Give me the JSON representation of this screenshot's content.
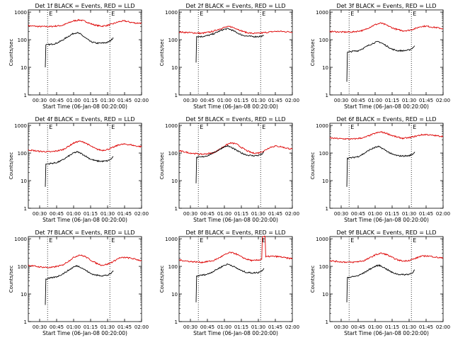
{
  "colors": {
    "events": "#000000",
    "lld": "#dd0000",
    "axis": "#000000",
    "marker": "#000000"
  },
  "chart_data": [
    {
      "type": "line",
      "title": "Det 1f BLACK = Events, RED = LLD",
      "xlabel": "Start Time (06-Jan-08 00:20:00)",
      "ylabel": "Counts/sec",
      "x_ticks": [
        "00:30",
        "00:45",
        "01:00",
        "01:15",
        "01:30",
        "01:45",
        "02:00"
      ],
      "y_ticks": [
        "1",
        "10",
        "100",
        "1000"
      ],
      "xlim_minutes": [
        20,
        120
      ],
      "ylim": [
        1,
        1200
      ],
      "y_scale": "log",
      "marker_lines_minutes": [
        37,
        92
      ],
      "marker_labels": [
        "E",
        "E"
      ],
      "series": [
        {
          "name": "LLD",
          "color": "lld",
          "x": [
            20,
            30,
            40,
            50,
            55,
            60,
            65,
            70,
            75,
            80,
            85,
            90,
            95,
            100,
            105,
            110,
            115,
            120
          ],
          "y": [
            320,
            300,
            300,
            330,
            400,
            480,
            520,
            470,
            380,
            330,
            310,
            330,
            380,
            450,
            480,
            430,
            400,
            400
          ]
        },
        {
          "name": "Events",
          "color": "events",
          "x": [
            35,
            35.5,
            36,
            40,
            45,
            50,
            55,
            60,
            63,
            66,
            70,
            75,
            80,
            85,
            90,
            93,
            95
          ],
          "y": [
            10,
            65,
            65,
            68,
            75,
            95,
            130,
            170,
            180,
            160,
            120,
            85,
            75,
            75,
            80,
            95,
            120
          ]
        }
      ]
    },
    {
      "type": "line",
      "title": "Det 2f BLACK = Events, RED = LLD",
      "xlabel": "Start Time (06-Jan-08 00:20:00)",
      "ylabel": "Counts/sec",
      "x_ticks": [
        "00:30",
        "00:45",
        "01:00",
        "01:15",
        "01:30",
        "01:45",
        "02:00"
      ],
      "y_ticks": [
        "1",
        "10",
        "100",
        "1000"
      ],
      "xlim_minutes": [
        20,
        120
      ],
      "ylim": [
        1,
        1200
      ],
      "y_scale": "log",
      "marker_lines_minutes": [
        37,
        92
      ],
      "marker_labels": [
        "E",
        "E"
      ],
      "series": [
        {
          "name": "LLD",
          "color": "lld",
          "x": [
            20,
            30,
            40,
            50,
            55,
            60,
            65,
            70,
            75,
            80,
            85,
            90,
            95,
            100,
            105,
            110,
            115,
            120
          ],
          "y": [
            190,
            180,
            170,
            200,
            240,
            280,
            300,
            260,
            210,
            180,
            170,
            170,
            180,
            190,
            200,
            200,
            195,
            190
          ]
        },
        {
          "name": "Events",
          "color": "events",
          "x": [
            35,
            35.5,
            36,
            40,
            45,
            50,
            55,
            60,
            63,
            66,
            70,
            75,
            80,
            85,
            90,
            93,
            95
          ],
          "y": [
            15,
            130,
            130,
            130,
            140,
            160,
            200,
            240,
            250,
            230,
            190,
            150,
            135,
            130,
            130,
            135,
            140
          ]
        }
      ]
    },
    {
      "type": "line",
      "title": "Det 3f BLACK = Events, RED = LLD",
      "xlabel": "Start Time (06-Jan-08 00:20:00)",
      "ylabel": "Counts/sec",
      "x_ticks": [
        "00:30",
        "00:45",
        "01:00",
        "01:15",
        "01:30",
        "01:45",
        "02:00"
      ],
      "y_ticks": [
        "1",
        "10",
        "100",
        "1000"
      ],
      "xlim_minutes": [
        20,
        120
      ],
      "ylim": [
        1,
        1200
      ],
      "y_scale": "log",
      "marker_lines_minutes": [
        37,
        92
      ],
      "marker_labels": [
        "E",
        "E"
      ],
      "series": [
        {
          "name": "LLD",
          "color": "lld",
          "x": [
            20,
            30,
            40,
            50,
            55,
            60,
            65,
            70,
            75,
            80,
            85,
            90,
            95,
            100,
            105,
            110,
            115,
            120
          ],
          "y": [
            200,
            190,
            190,
            220,
            280,
            350,
            400,
            340,
            270,
            230,
            210,
            220,
            250,
            300,
            310,
            290,
            270,
            250
          ]
        },
        {
          "name": "Events",
          "color": "events",
          "x": [
            35,
            35.5,
            36,
            40,
            45,
            50,
            55,
            60,
            63,
            66,
            70,
            75,
            80,
            85,
            90,
            93,
            95
          ],
          "y": [
            3,
            35,
            35,
            38,
            40,
            50,
            65,
            80,
            85,
            75,
            60,
            45,
            40,
            40,
            42,
            50,
            60
          ]
        }
      ]
    },
    {
      "type": "line",
      "title": "Det 4f BLACK = Events, RED = LLD",
      "xlabel": "Start Time (06-Jan-08 00:20:00)",
      "ylabel": "Counts/sec",
      "x_ticks": [
        "00:30",
        "00:45",
        "01:00",
        "01:15",
        "01:30",
        "01:45",
        "02:00"
      ],
      "y_ticks": [
        "1",
        "10",
        "100",
        "1000"
      ],
      "xlim_minutes": [
        20,
        120
      ],
      "ylim": [
        1,
        1200
      ],
      "y_scale": "log",
      "marker_lines_minutes": [
        37,
        92
      ],
      "marker_labels": [
        "E",
        "E"
      ],
      "series": [
        {
          "name": "LLD",
          "color": "lld",
          "x": [
            20,
            30,
            40,
            50,
            55,
            60,
            65,
            70,
            75,
            80,
            85,
            90,
            95,
            100,
            105,
            110,
            115,
            120
          ],
          "y": [
            130,
            115,
            110,
            130,
            170,
            230,
            270,
            240,
            180,
            140,
            125,
            135,
            160,
            200,
            210,
            200,
            180,
            170
          ]
        },
        {
          "name": "Events",
          "color": "events",
          "x": [
            35,
            35.5,
            36,
            40,
            45,
            50,
            55,
            60,
            63,
            66,
            70,
            75,
            80,
            85,
            90,
            93,
            95
          ],
          "y": [
            6,
            40,
            40,
            42,
            45,
            55,
            75,
            100,
            110,
            100,
            80,
            60,
            52,
            50,
            52,
            60,
            75
          ]
        }
      ]
    },
    {
      "type": "line",
      "title": "Det 5f BLACK = Events, RED = LLD",
      "xlabel": "Start Time (06-Jan-08 00:20:00)",
      "ylabel": "Counts/sec",
      "x_ticks": [
        "00:30",
        "00:45",
        "01:00",
        "01:15",
        "01:30",
        "01:45",
        "02:00"
      ],
      "y_ticks": [
        "1",
        "10",
        "100",
        "1000"
      ],
      "xlim_minutes": [
        20,
        120
      ],
      "ylim": [
        1,
        1200
      ],
      "y_scale": "log",
      "marker_lines_minutes": [
        37,
        92
      ],
      "marker_labels": [
        "E",
        "E"
      ],
      "series": [
        {
          "name": "LLD",
          "color": "lld",
          "x": [
            20,
            30,
            40,
            50,
            55,
            60,
            65,
            70,
            75,
            80,
            85,
            90,
            95,
            100,
            105,
            110,
            115,
            120
          ],
          "y": [
            120,
            100,
            90,
            100,
            130,
            180,
            230,
            220,
            160,
            120,
            100,
            100,
            120,
            160,
            180,
            170,
            150,
            140
          ]
        },
        {
          "name": "Events",
          "color": "events",
          "x": [
            35,
            35.5,
            36,
            40,
            45,
            50,
            55,
            60,
            63,
            66,
            70,
            75,
            80,
            85,
            90,
            93,
            95
          ],
          "y": [
            8,
            70,
            70,
            72,
            80,
            100,
            130,
            170,
            180,
            160,
            130,
            100,
            85,
            80,
            82,
            90,
            110
          ]
        }
      ]
    },
    {
      "type": "line",
      "title": "Det 6f BLACK = Events, RED = LLD",
      "xlabel": "Start Time (06-Jan-08 00:20:00)",
      "ylabel": "Counts/sec",
      "x_ticks": [
        "00:30",
        "00:45",
        "01:00",
        "01:15",
        "01:30",
        "01:45",
        "02:00"
      ],
      "y_ticks": [
        "1",
        "10",
        "100",
        "1000"
      ],
      "xlim_minutes": [
        20,
        120
      ],
      "ylim": [
        1,
        1200
      ],
      "y_scale": "log",
      "marker_lines_minutes": [
        37,
        92
      ],
      "marker_labels": [
        "E",
        "E"
      ],
      "series": [
        {
          "name": "LLD",
          "color": "lld",
          "x": [
            20,
            30,
            40,
            50,
            55,
            60,
            65,
            70,
            75,
            80,
            85,
            90,
            95,
            100,
            105,
            110,
            115,
            120
          ],
          "y": [
            350,
            330,
            320,
            360,
            430,
            520,
            580,
            520,
            430,
            370,
            340,
            360,
            400,
            450,
            470,
            440,
            420,
            400
          ]
        },
        {
          "name": "Events",
          "color": "events",
          "x": [
            35,
            35.5,
            36,
            40,
            45,
            50,
            55,
            60,
            63,
            66,
            70,
            75,
            80,
            85,
            90,
            93,
            95
          ],
          "y": [
            6,
            65,
            65,
            68,
            75,
            95,
            130,
            160,
            170,
            150,
            120,
            90,
            80,
            78,
            80,
            90,
            110
          ]
        }
      ]
    },
    {
      "type": "line",
      "title": "Det 7f BLACK = Events, RED = LLD",
      "xlabel": "Start Time (06-Jan-08 00:20:00)",
      "ylabel": "Counts/sec",
      "x_ticks": [
        "00:30",
        "00:45",
        "01:00",
        "01:15",
        "01:30",
        "01:45",
        "02:00"
      ],
      "y_ticks": [
        "1",
        "10",
        "100",
        "1000"
      ],
      "xlim_minutes": [
        20,
        120
      ],
      "ylim": [
        1,
        1200
      ],
      "y_scale": "log",
      "marker_lines_minutes": [
        37,
        92
      ],
      "marker_labels": [
        "E",
        "E"
      ],
      "series": [
        {
          "name": "LLD",
          "color": "lld",
          "x": [
            20,
            30,
            40,
            50,
            55,
            60,
            65,
            70,
            75,
            80,
            85,
            90,
            95,
            100,
            105,
            110,
            115,
            120
          ],
          "y": [
            110,
            95,
            90,
            110,
            150,
            210,
            260,
            230,
            170,
            130,
            110,
            120,
            150,
            200,
            210,
            200,
            180,
            160
          ]
        },
        {
          "name": "Events",
          "color": "events",
          "x": [
            35,
            35.5,
            36,
            40,
            45,
            50,
            55,
            60,
            63,
            66,
            70,
            75,
            80,
            85,
            90,
            93,
            95
          ],
          "y": [
            4,
            35,
            35,
            38,
            42,
            52,
            70,
            95,
            105,
            95,
            75,
            55,
            48,
            46,
            48,
            55,
            70
          ]
        }
      ]
    },
    {
      "type": "line",
      "title": "Det 8f BLACK = Events, RED = LLD",
      "xlabel": "Start Time (06-Jan-08 00:20:00)",
      "ylabel": "Counts/sec",
      "x_ticks": [
        "00:30",
        "00:45",
        "01:00",
        "01:15",
        "01:30",
        "01:45",
        "02:00"
      ],
      "y_ticks": [
        "1",
        "10",
        "100",
        "1000"
      ],
      "xlim_minutes": [
        20,
        120
      ],
      "ylim": [
        1,
        1200
      ],
      "y_scale": "log",
      "marker_lines_minutes": [
        37,
        92
      ],
      "marker_labels": [
        "E",
        "E"
      ],
      "series": [
        {
          "name": "LLD",
          "color": "lld",
          "x": [
            20,
            30,
            40,
            50,
            55,
            60,
            65,
            70,
            75,
            80,
            85,
            90,
            93,
            93.5,
            96,
            96.5,
            100,
            105,
            110,
            115,
            120
          ],
          "y": [
            170,
            150,
            140,
            160,
            200,
            260,
            320,
            290,
            220,
            180,
            160,
            170,
            180,
            1200,
            1200,
            220,
            230,
            230,
            220,
            200,
            190
          ]
        },
        {
          "name": "Events",
          "color": "events",
          "x": [
            35,
            35.5,
            36,
            40,
            45,
            50,
            55,
            60,
            63,
            66,
            70,
            75,
            80,
            85,
            90,
            93,
            95
          ],
          "y": [
            5,
            45,
            45,
            48,
            52,
            65,
            85,
            110,
            120,
            110,
            90,
            70,
            60,
            58,
            60,
            70,
            85
          ]
        }
      ]
    },
    {
      "type": "line",
      "title": "Det 9f BLACK = Events, RED = LLD",
      "xlabel": "Start Time (06-Jan-08 00:20:00)",
      "ylabel": "Counts/sec",
      "x_ticks": [
        "00:30",
        "00:45",
        "01:00",
        "01:15",
        "01:30",
        "01:45",
        "02:00"
      ],
      "y_ticks": [
        "1",
        "10",
        "100",
        "1000"
      ],
      "xlim_minutes": [
        20,
        120
      ],
      "ylim": [
        1,
        1200
      ],
      "y_scale": "log",
      "marker_lines_minutes": [
        37,
        92
      ],
      "marker_labels": [
        "E",
        "E"
      ],
      "series": [
        {
          "name": "LLD",
          "color": "lld",
          "x": [
            20,
            30,
            40,
            50,
            55,
            60,
            65,
            70,
            75,
            80,
            85,
            90,
            95,
            100,
            105,
            110,
            115,
            120
          ],
          "y": [
            160,
            145,
            140,
            160,
            200,
            260,
            300,
            270,
            210,
            170,
            155,
            165,
            190,
            230,
            240,
            230,
            210,
            200
          ]
        },
        {
          "name": "Events",
          "color": "events",
          "x": [
            35,
            35.5,
            36,
            40,
            45,
            50,
            55,
            60,
            63,
            66,
            70,
            75,
            80,
            85,
            90,
            93,
            95
          ],
          "y": [
            5,
            40,
            40,
            42,
            46,
            58,
            78,
            100,
            110,
            100,
            80,
            60,
            52,
            50,
            52,
            60,
            75
          ]
        }
      ]
    }
  ]
}
